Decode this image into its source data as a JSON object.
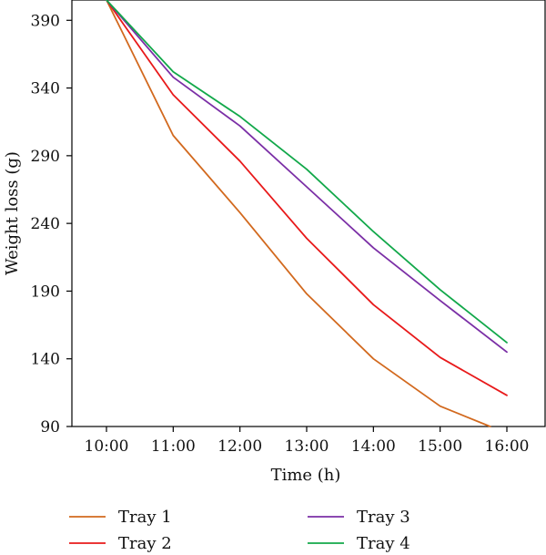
{
  "chart_data": {
    "type": "line",
    "xlabel": "Time (h)",
    "ylabel": "Weight loss (g)",
    "x": [
      "10:00",
      "11:00",
      "12:00",
      "13:00",
      "14:00",
      "15:00",
      "16:00"
    ],
    "ylim": [
      90,
      405
    ],
    "yticks": [
      90,
      140,
      190,
      240,
      290,
      340,
      390
    ],
    "grid": false,
    "legend_position": "bottom",
    "series": [
      {
        "name": "Tray 1",
        "color": "#d2691e",
        "values": [
          405,
          305,
          248,
          188,
          140,
          105,
          85
        ]
      },
      {
        "name": "Tray 2",
        "color": "#e8191a",
        "values": [
          405,
          335,
          286,
          229,
          180,
          141,
          113
        ]
      },
      {
        "name": "Tray 3",
        "color": "#7b2fa6",
        "values": [
          405,
          348,
          312,
          267,
          222,
          183,
          145
        ]
      },
      {
        "name": "Tray 4",
        "color": "#12a84a",
        "values": [
          405,
          352,
          319,
          280,
          234,
          191,
          152
        ]
      }
    ]
  }
}
